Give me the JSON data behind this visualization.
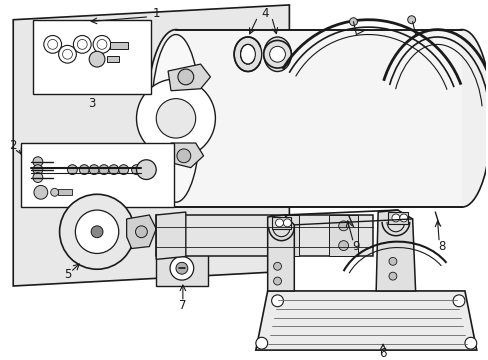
{
  "bg_color": "#ffffff",
  "line_color": "#1a1a1a",
  "panel_fill": "#e8e8e8",
  "white": "#ffffff",
  "gray_light": "#d8d8d8",
  "figsize": [
    4.89,
    3.6
  ],
  "dpi": 100
}
